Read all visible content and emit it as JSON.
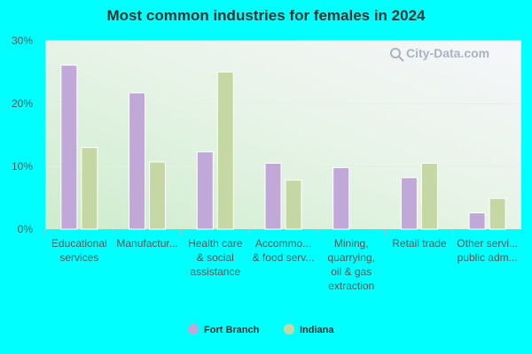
{
  "chart_data": {
    "type": "bar",
    "title": "Most common industries for females in 2024",
    "categories": [
      [
        "Educational",
        "services"
      ],
      [
        "Manufactur..."
      ],
      [
        "Health care",
        "& social",
        "assistance"
      ],
      [
        "Accommo...",
        "& food serv..."
      ],
      [
        "Mining,",
        "quarrying,",
        "oil & gas",
        "extraction"
      ],
      [
        "Retail trade"
      ],
      [
        "Other servi...",
        "public adm..."
      ]
    ],
    "series": [
      {
        "name": "Fort Branch",
        "color": "#c0a8d8",
        "values": [
          26.1,
          21.7,
          12.3,
          10.5,
          9.8,
          8.2,
          2.6
        ]
      },
      {
        "name": "Indiana",
        "color": "#c5d8a4",
        "values": [
          13.0,
          10.7,
          25.0,
          7.8,
          0,
          10.5,
          4.9
        ]
      }
    ],
    "yticks": [
      "0%",
      "10%",
      "20%",
      "30%"
    ],
    "ylim": [
      0,
      30
    ],
    "grid": true,
    "legend_position": "bottom-center",
    "xlabel": "",
    "ylabel": ""
  },
  "watermark": {
    "text": "City-Data.com",
    "icon": "magnifier-icon"
  }
}
